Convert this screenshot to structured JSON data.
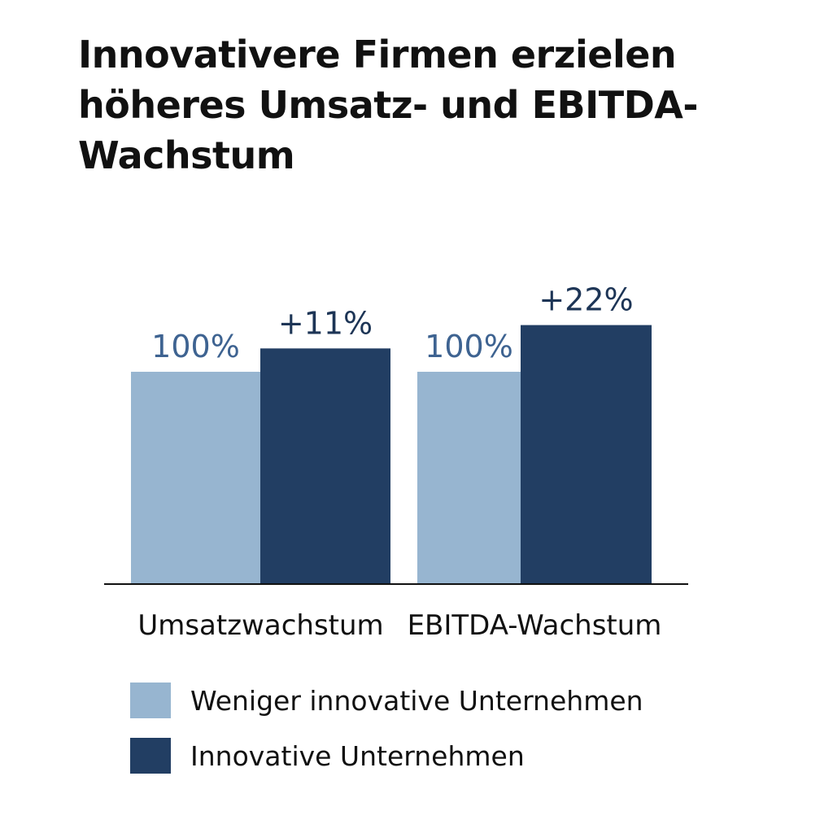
{
  "title": "Innovativere Firmen erzielen höheres Umsatz- und EBITDA-Wachstum",
  "colors": {
    "light": "#97b5d0",
    "dark": "#223e63",
    "axis": "#111111",
    "light_label": "#3e6391",
    "dark_label": "#1d3556"
  },
  "chart_data": {
    "type": "bar",
    "title": "Innovativere Firmen erzielen höheres Umsatz- und EBITDA-Wachstum",
    "categories": [
      "Umsatzwachstum",
      "EBITDA-Wachstum"
    ],
    "series": [
      {
        "name": "Weniger innovative Unternehmen",
        "values": [
          100,
          100
        ],
        "labels": [
          "100%",
          "100%"
        ],
        "color": "#97b5d0"
      },
      {
        "name": "Innovative Unternehmen",
        "values": [
          111,
          122
        ],
        "labels": [
          "+11%",
          "+22%"
        ],
        "color": "#223e63"
      }
    ],
    "ylim": [
      0,
      205
    ],
    "grid": false,
    "legend": "bottom-left",
    "xlabel": "",
    "ylabel": ""
  },
  "legend": {
    "items": [
      {
        "label": "Weniger innovative Unternehmen",
        "color": "#97b5d0"
      },
      {
        "label": "Innovative Unternehmen",
        "color": "#223e63"
      }
    ]
  }
}
